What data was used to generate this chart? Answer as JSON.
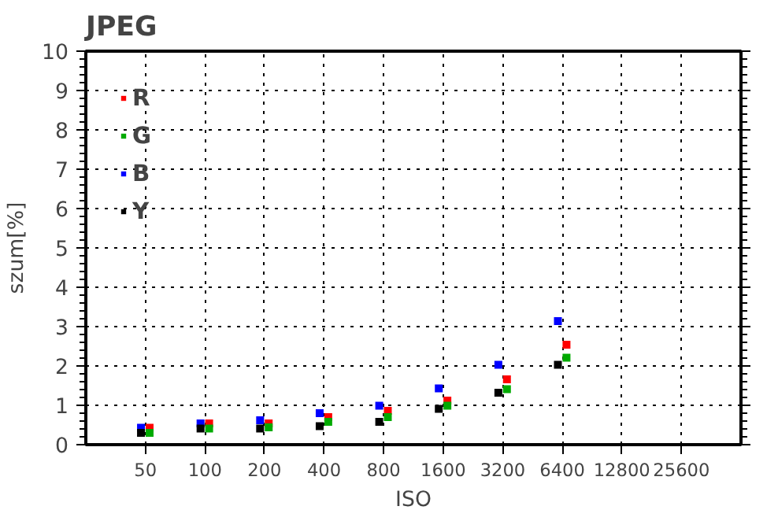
{
  "chart_data": {
    "type": "scatter",
    "title": "JPEG",
    "xlabel": "ISO",
    "ylabel": "szum[%]",
    "log": "x",
    "xlim": [
      25,
      51200
    ],
    "xticks": [
      50,
      100,
      200,
      400,
      800,
      1600,
      3200,
      6400,
      12800,
      25600
    ],
    "ylim": [
      0,
      10
    ],
    "yticks": [
      0,
      1,
      2,
      3,
      4,
      5,
      6,
      7,
      8,
      9,
      10
    ],
    "grid": true,
    "legend": "top left",
    "marker": "square",
    "series": [
      {
        "name": "R",
        "color": "#ff0000",
        "x": [
          52.5,
          105,
          210,
          420,
          840,
          1680,
          3360,
          6720
        ],
        "values": [
          0.43,
          0.54,
          0.54,
          0.7,
          0.86,
          1.12,
          1.66,
          2.54
        ]
      },
      {
        "name": "G",
        "color": "#00aa00",
        "x": [
          52.5,
          105,
          210,
          420,
          840,
          1680,
          3360,
          6720
        ],
        "values": [
          0.3,
          0.41,
          0.44,
          0.58,
          0.7,
          0.99,
          1.41,
          2.21
        ]
      },
      {
        "name": "B",
        "color": "#0000ff",
        "x": [
          47.5,
          95,
          190,
          380,
          760,
          1520,
          3040,
          6080
        ],
        "values": [
          0.43,
          0.54,
          0.62,
          0.8,
          0.99,
          1.43,
          2.03,
          3.14
        ]
      },
      {
        "name": "Y",
        "color": "#000000",
        "x": [
          47.5,
          95,
          190,
          380,
          760,
          1520,
          3040,
          6080
        ],
        "values": [
          0.3,
          0.41,
          0.41,
          0.47,
          0.58,
          0.91,
          1.32,
          2.03
        ]
      }
    ]
  }
}
